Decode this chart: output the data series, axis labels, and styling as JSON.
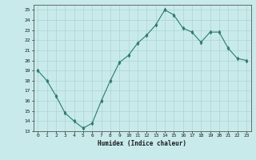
{
  "x": [
    0,
    1,
    2,
    3,
    4,
    5,
    6,
    7,
    8,
    9,
    10,
    11,
    12,
    13,
    14,
    15,
    16,
    17,
    18,
    19,
    20,
    21,
    22,
    23
  ],
  "y": [
    19,
    18,
    16.5,
    14.8,
    14.0,
    13.3,
    13.8,
    16.0,
    18.0,
    19.8,
    20.5,
    21.7,
    22.5,
    23.5,
    25.0,
    24.5,
    23.2,
    22.8,
    21.8,
    22.8,
    22.8,
    21.2,
    20.2,
    20.0
  ],
  "line_color": "#2d7a6e",
  "marker": "d",
  "marker_size": 2.5,
  "bg_color": "#c8eaea",
  "grid_color": "#aed4d4",
  "xlabel": "Humidex (Indice chaleur)",
  "ylim": [
    13,
    25.5
  ],
  "xlim": [
    -0.5,
    23.5
  ],
  "yticks": [
    13,
    14,
    15,
    16,
    17,
    18,
    19,
    20,
    21,
    22,
    23,
    24,
    25
  ],
  "xticks": [
    0,
    1,
    2,
    3,
    4,
    5,
    6,
    7,
    8,
    9,
    10,
    11,
    12,
    13,
    14,
    15,
    16,
    17,
    18,
    19,
    20,
    21,
    22,
    23
  ]
}
